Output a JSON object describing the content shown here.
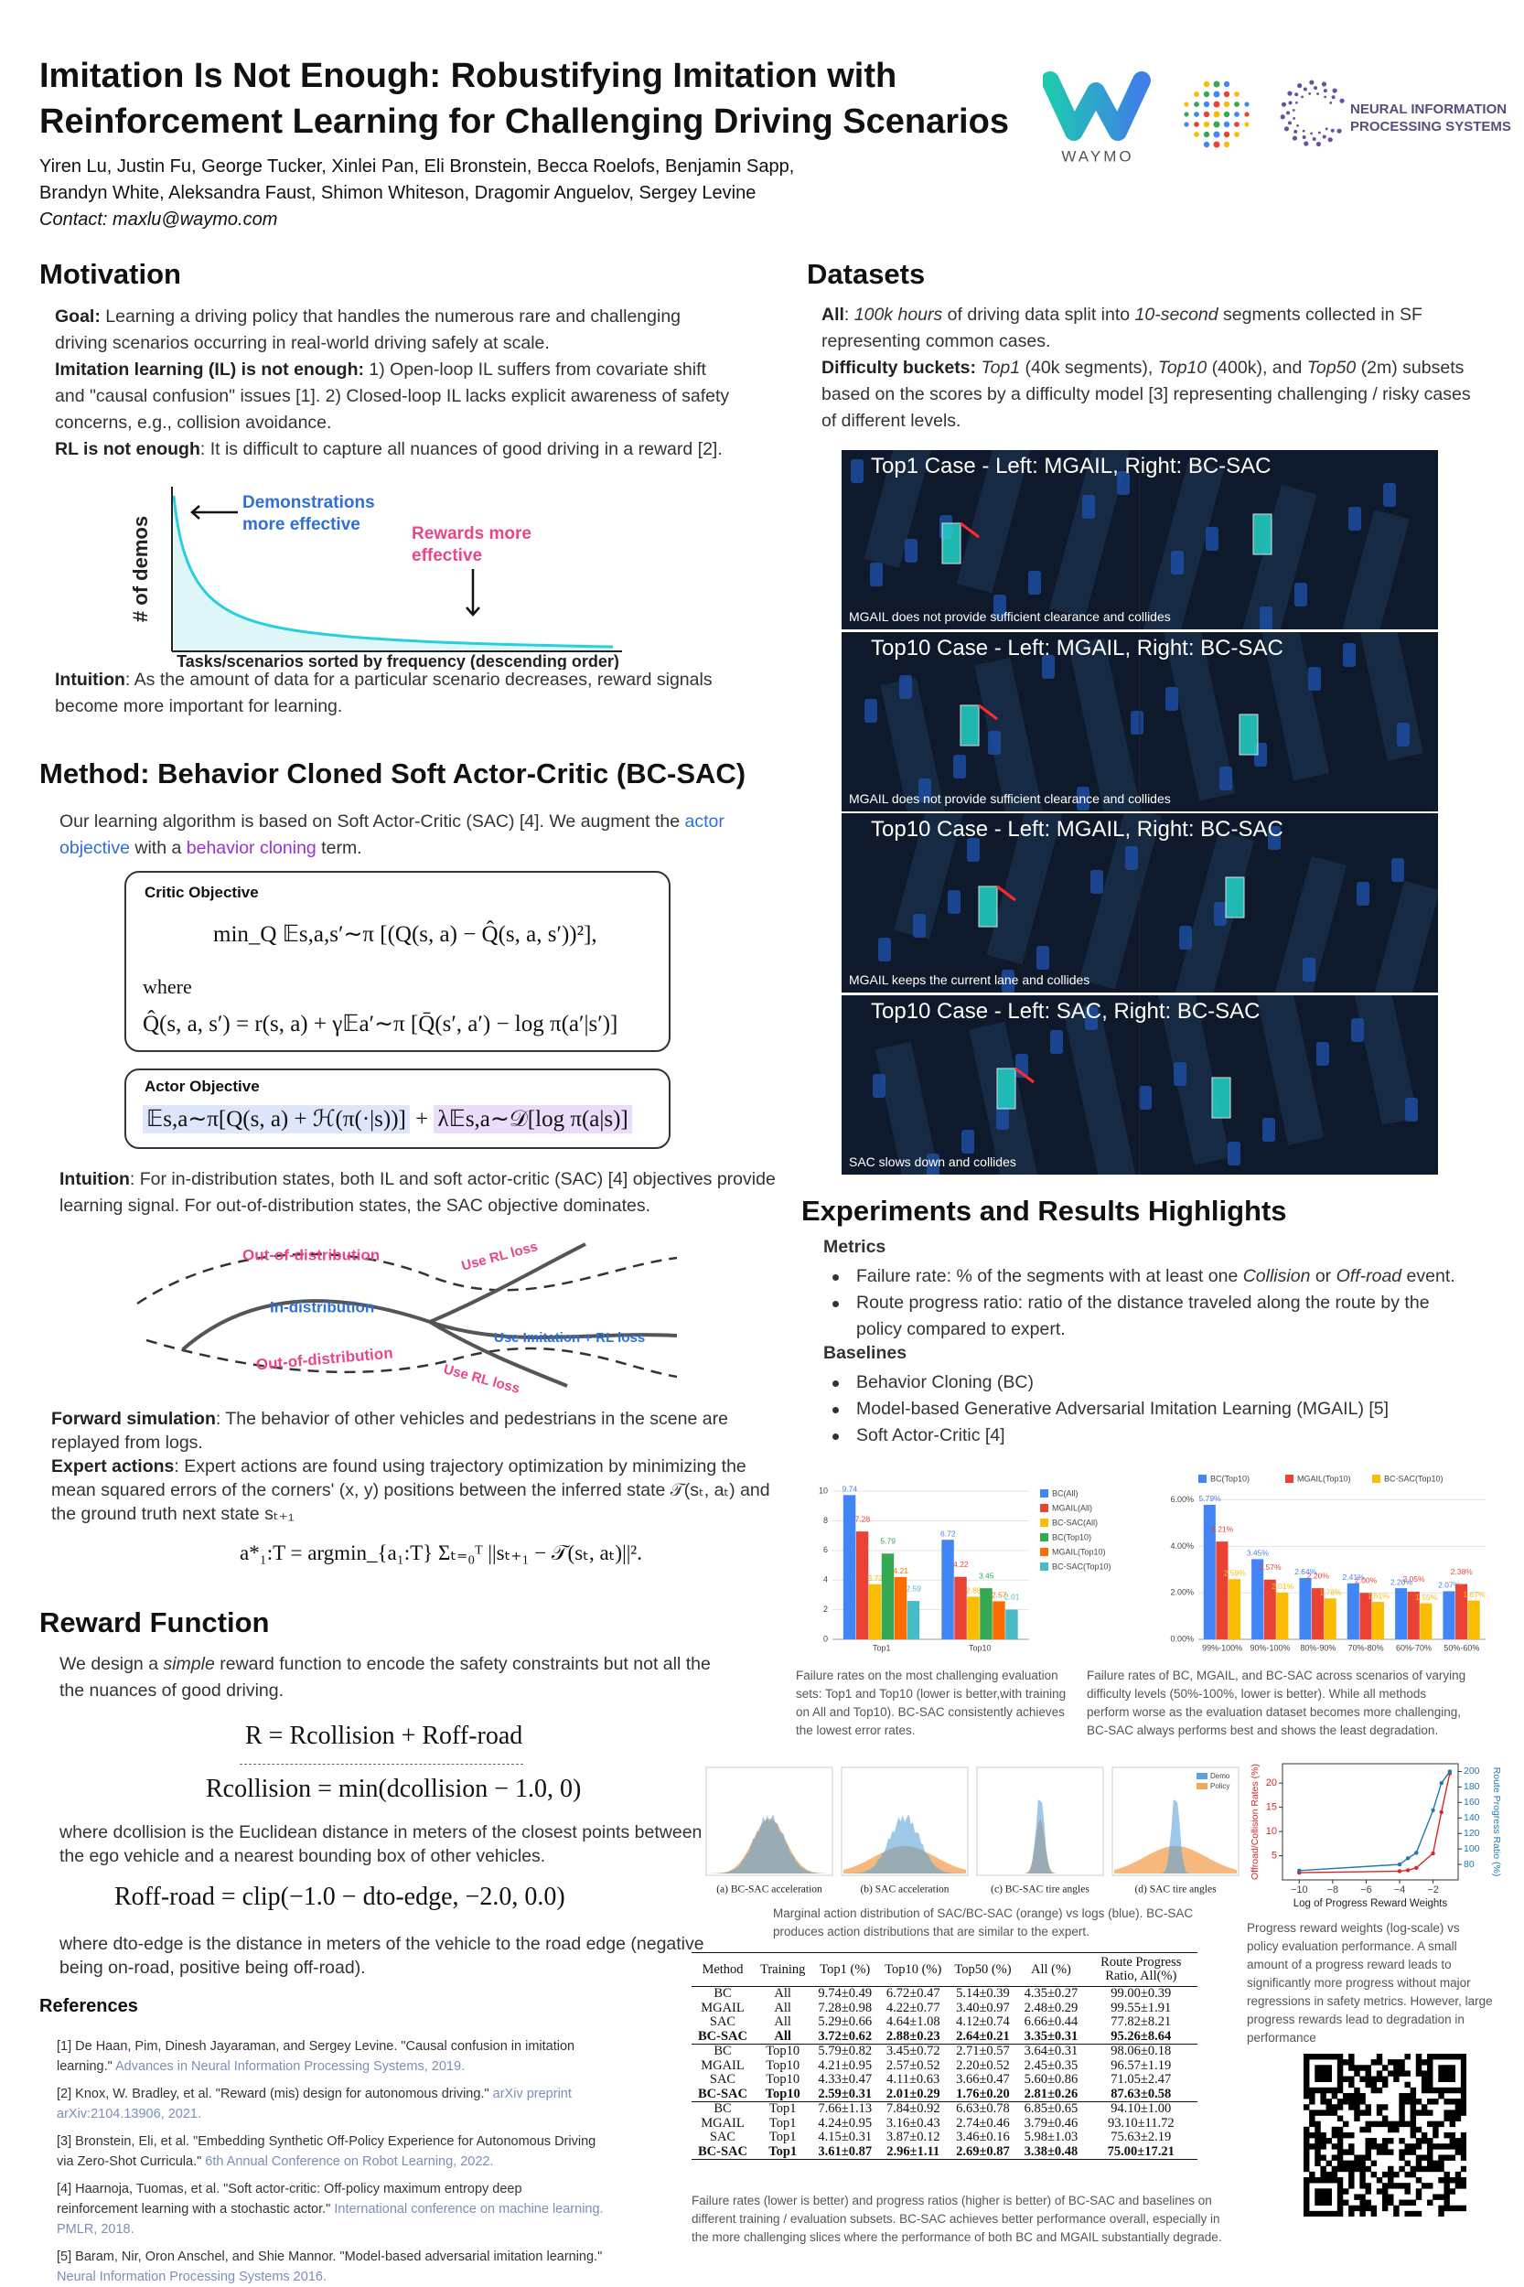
{
  "header": {
    "title_lines": [
      "Imitation Is Not Enough: Robustifying Imitation with",
      "Reinforcement Learning for Challenging Driving Scenarios"
    ],
    "author_lines": [
      "Yiren Lu, Justin Fu, George Tucker, Xinlei Pan, Eli Bronstein, Becca Roelofs, Benjamin Sapp,",
      "Brandyn White, Aleksandra Faust, Shimon Whiteson, Dragomir Anguelov, Sergey Levine"
    ],
    "contact": "Contact: maxlu@waymo.com",
    "logo_waymo": "WAYMO",
    "logo_neurips": [
      "NEURAL INFORMATION",
      "PROCESSING SYSTEMS"
    ]
  },
  "motivation": {
    "heading": "Motivation",
    "paragraphs": [
      {
        "lead": "Goal:",
        "text": " Learning a driving policy that handles the numerous rare and challenging driving scenarios occurring in real-world driving safely at scale."
      },
      {
        "lead": "Imitation learning (IL) is not enough:",
        "text": " 1) Open-loop IL suffers from covariate shift and \"causal confusion\" issues [1]. 2) Closed-loop IL lacks explicit awareness of safety concerns, e.g., collision avoidance."
      },
      {
        "lead": "RL is not enough",
        "text": ": It is difficult to capture all nuances of good driving in a reward [2]."
      }
    ],
    "figure": {
      "y_label": "# of demos",
      "x_label": "Tasks/scenarios sorted by frequency (descending order)",
      "note_demo": [
        "Demonstrations",
        "more effective"
      ],
      "note_reward": [
        "Rewards more",
        "effective"
      ]
    },
    "intuition": {
      "lead": "Intuition",
      "text": ": As the amount of data for a particular scenario decreases, reward signals become more important for learning."
    }
  },
  "method": {
    "heading": "Method: Behavior Cloned Soft Actor-Critic (BC-SAC)",
    "intro": [
      "Our learning algorithm is based on Soft Actor-Critic (SAC) [4]. We augment the ",
      "actor objective",
      " with a ",
      "behavior cloning",
      " term."
    ],
    "critic": {
      "title": "Critic Objective",
      "eq1": "min_Q  𝔼s,a,s′∼π [(Q(s, a) − Q̂(s, a, s′))²],",
      "where": "where",
      "eq2": "Q̂(s, a, s′) = r(s, a) + γ𝔼a′∼π [Q̄(s′, a′) − log π(a′|s′)]"
    },
    "actor": {
      "title": "Actor Objective",
      "eq_rl": "𝔼s,a∼π[Q(s, a) + ℋ(π(·|s))]",
      "plus": " + ",
      "eq_bc": "λ𝔼s,a∼𝒟[log π(a|s)]"
    },
    "intuition": {
      "lead": "Intuition",
      "text": ": For in-distribution states, both IL and soft actor-critic (SAC) [4] objectives provide learning signal. For out-of-distribution states, the SAC objective dominates."
    },
    "diagram": {
      "ood_top": "Out-of-distribution",
      "in_dist": "In-distribution",
      "ood_bottom": "Out-of-distribution",
      "rl_top": "Use RL loss",
      "il_rl": "Use Imitation + RL loss",
      "rl_bottom": "Use RL loss"
    },
    "forward_sim": {
      "lead": "Forward simulation",
      "text": ": The behavior of other vehicles and pedestrians in the scene are replayed from logs."
    },
    "expert": {
      "lead": "Expert actions",
      "text": ": Expert actions are found using trajectory optimization by minimizing the mean squared errors of the corners' (x, y) positions between the inferred state 𝒯(sₜ, aₜ) and the ground truth next state sₜ₊₁"
    },
    "expert_eq": "a*₁:T = argmin_{a₁:T} Σₜ₌₀ᵀ ||sₜ₊₁ − 𝒯(sₜ, aₜ)||²."
  },
  "reward": {
    "heading": "Reward Function",
    "intro": [
      "We design a ",
      "simple",
      " reward function to encode the safety constraints but not all the the nuances of good driving."
    ],
    "eq_total": "R = Rcollision + Roff-road",
    "eq_collision": "Rcollision = min(dcollision − 1.0, 0)",
    "where_collision": "where dcollision is the Euclidean distance in meters of the closest points between the ego vehicle and a nearest bounding box of other vehicles.",
    "eq_offroad": "Roff-road = clip(−1.0 − dto-edge, −2.0, 0.0)",
    "where_offroad": "where dto-edge is the distance in meters of the vehicle to the road edge (negative being on-road, positive being off-road)."
  },
  "references": {
    "heading": "References",
    "items": [
      {
        "text": "[1] De Haan, Pim, Dinesh Jayaraman, and Sergey Levine. \"Causal confusion in imitation learning.\"",
        "venue": "Advances in Neural Information Processing Systems, 2019."
      },
      {
        "text": "[2] Knox, W. Bradley, et al. \"Reward (mis) design for autonomous driving.\"",
        "venue": "arXiv preprint arXiv:2104.13906, 2021."
      },
      {
        "text": "[3] Bronstein, Eli, et al. \"Embedding Synthetic Off-Policy Experience for Autonomous Driving via Zero-Shot Curricula.\"",
        "venue": "6th Annual Conference on Robot Learning, 2022."
      },
      {
        "text": "[4] Haarnoja, Tuomas, et al. \"Soft actor-critic: Off-policy maximum entropy deep reinforcement learning with a stochastic actor.\"",
        "venue": "International conference on machine learning. PMLR, 2018."
      },
      {
        "text": "[5] Baram, Nir, Oron Anschel, and Shie Mannor. \"Model-based adversarial imitation learning.\"",
        "venue": "Neural Information Processing Systems 2016."
      }
    ]
  },
  "datasets": {
    "heading": "Datasets",
    "all": [
      "All",
      ": ",
      "100k hours",
      " of driving data split into ",
      "10-second",
      " segments collected in SF representing common cases."
    ],
    "buckets": [
      "Difficulty buckets:",
      " ",
      "Top1",
      " (40k segments), ",
      "Top10",
      " (400k), and ",
      "Top50",
      " (2m) subsets based on the scores by a difficulty model [3] representing challenging / risky cases of different levels."
    ],
    "panels": [
      {
        "title": "Top1 Case - Left: MGAIL, Right: BC-SAC",
        "caption": "MGAIL does not provide sufficient clearance and collides"
      },
      {
        "title": "Top10 Case - Left: MGAIL, Right: BC-SAC",
        "caption": "MGAIL does not provide sufficient clearance and collides"
      },
      {
        "title": "Top10 Case - Left: MGAIL, Right: BC-SAC",
        "caption": "MGAIL keeps the current lane and collides"
      },
      {
        "title": "Top10 Case - Left: SAC, Right: BC-SAC",
        "caption": "SAC slows down and collides"
      }
    ]
  },
  "results": {
    "heading": "Experiments and Results Highlights",
    "metrics_heading": "Metrics",
    "metrics": [
      [
        "Failure rate: % of the segments with at least one ",
        "Collision",
        " or ",
        "Off-road",
        " event."
      ],
      [
        "Route progress ratio: ratio of the distance traveled along the route by the policy compared to expert."
      ]
    ],
    "baselines_heading": "Baselines",
    "baselines": [
      "Behavior Cloning (BC)",
      "Model-based Generative Adversarial Imitation Learning (MGAIL) [5]",
      "Soft Actor-Critic [4]"
    ],
    "chart1": {
      "type": "bar",
      "categories": [
        "Top1",
        "Top10"
      ],
      "series": [
        {
          "name": "BC(All)",
          "color": "#4285f4",
          "values": [
            9.74,
            6.72
          ]
        },
        {
          "name": "MGAIL(All)",
          "color": "#ea4335",
          "values": [
            7.28,
            4.22
          ]
        },
        {
          "name": "BC-SAC(All)",
          "color": "#fbbc04",
          "values": [
            3.72,
            2.88
          ]
        },
        {
          "name": "BC(Top10)",
          "color": "#34a853",
          "values": [
            5.79,
            3.45
          ]
        },
        {
          "name": "MGAIL(Top10)",
          "color": "#ff6d01",
          "values": [
            4.21,
            2.57
          ]
        },
        {
          "name": "BC-SAC(Top10)",
          "color": "#46bdc6",
          "values": [
            2.59,
            2.01
          ]
        }
      ],
      "ylim": [
        0,
        10.5
      ],
      "yticks": [
        0,
        2,
        4,
        6,
        8,
        10
      ],
      "grid": true,
      "legend": "right",
      "caption": "Failure rates on the most challenging evaluation sets: Top1 and Top10 (lower is better,with training on All and Top10). BC-SAC consistently achieves the lowest error rates."
    },
    "chart2": {
      "type": "bar",
      "categories": [
        "99%-100%",
        "90%-100%",
        "80%-90%",
        "70%-80%",
        "60%-70%",
        "50%-60%"
      ],
      "series": [
        {
          "name": "BC(Top10)",
          "color": "#4285f4",
          "values": [
            5.79,
            3.45,
            2.64,
            2.41,
            2.2,
            2.07
          ],
          "value_labels": [
            "5.79%",
            "3.45%",
            "2.64%",
            "2.41%",
            "2.20%",
            "2.07%"
          ]
        },
        {
          "name": "MGAIL(Top10)",
          "color": "#ea4335",
          "values": [
            4.21,
            2.57,
            2.2,
            2.0,
            2.05,
            2.38
          ],
          "value_labels": [
            "4.21%",
            "2.57%",
            "2.20%",
            "2.00%",
            "2.05%",
            "2.38%"
          ]
        },
        {
          "name": "BC-SAC(Top10)",
          "color": "#fbbc04",
          "values": [
            2.59,
            2.01,
            1.76,
            1.61,
            1.55,
            1.67
          ],
          "value_labels": [
            "2.59%",
            "2.01%",
            "1.76%",
            "1.61%",
            "1.55%",
            "1.67%"
          ]
        }
      ],
      "ylim": [
        0,
        6.3
      ],
      "yticks": [
        {
          "value": 0,
          "label": "0.00%"
        },
        {
          "value": 2,
          "label": "2.00%"
        },
        {
          "value": 4,
          "label": "4.00%"
        },
        {
          "value": 6,
          "label": "6.00%"
        }
      ],
      "grid": true,
      "legend": "top",
      "caption": "Failure rates of BC, MGAIL, and BC-SAC across scenarios of varying difficulty levels (50%-100%, lower is better).  While all methods perform worse as the evaluation dataset becomes more challenging, BC-SAC always performs best and shows the least degradation."
    },
    "histograms": {
      "panels": [
        "(a) BC-SAC acceleration",
        "(b) SAC acceleration",
        "(c) BC-SAC tire angles",
        "(d) SAC tire angles"
      ],
      "legend": [
        "Demo",
        "Policy"
      ],
      "caption": "Marginal action distribution of SAC/BC-SAC (orange) vs logs (blue). BC-SAC produces action distributions that are similar to the expert."
    },
    "chart3": {
      "type": "line",
      "x_label": "Log of Progress Reward Weights",
      "y_label": "Offroad/Collision Rates (%)",
      "y2_label": "Route Progress Ratio (%)",
      "x": [
        -10,
        -4,
        -3.5,
        -3,
        -2,
        -1.5,
        -1
      ],
      "series": [
        {
          "color": "#d62728",
          "values": [
            1.5,
            1.8,
            2.0,
            2.5,
            5.5,
            14,
            22
          ]
        },
        {
          "color": "#1f77b4",
          "axis": "y2",
          "values": [
            72,
            80,
            88,
            95,
            150,
            185,
            200
          ]
        }
      ],
      "xlim": [
        -11,
        -0.5
      ],
      "xticks": [
        {
          "value": -10,
          "label": "−10"
        },
        {
          "value": -8,
          "label": "−8"
        },
        {
          "value": -6,
          "label": "−6"
        },
        {
          "value": -4,
          "label": "−4"
        },
        {
          "value": -2,
          "label": "−2"
        }
      ],
      "ylim": [
        0,
        24
      ],
      "yticks": [
        5,
        10,
        15,
        20
      ],
      "y2lim": [
        60,
        210
      ],
      "y2ticks": [
        80,
        100,
        120,
        140,
        160,
        180,
        200
      ],
      "caption": "Progress reward weights (log-scale) vs policy evaluation performance. A small amount of a progress reward leads to significantly more progress without major regressions in safety metrics. However, large progress rewards lead to degradation in performance"
    },
    "table": {
      "header": [
        "Method",
        "Training",
        "Top1 (%)",
        "Top10 (%)",
        "Top50 (%)",
        "All (%)",
        "Route Progress Ratio, All(%)"
      ],
      "rows": [
        [
          "BC",
          "All",
          "9.74±0.49",
          "6.72±0.47",
          "5.14±0.39",
          "4.35±0.27",
          "99.00±0.39"
        ],
        [
          "MGAIL",
          "All",
          "7.28±0.98",
          "4.22±0.77",
          "3.40±0.97",
          "2.48±0.29",
          "99.55±1.91"
        ],
        [
          "SAC",
          "All",
          "5.29±0.66",
          "4.64±1.08",
          "4.12±0.74",
          "6.66±0.44",
          "77.82±8.21"
        ],
        [
          "BC-SAC",
          "All",
          "3.72±0.62",
          "2.88±0.23",
          "2.64±0.21",
          "3.35±0.31",
          "95.26±8.64"
        ],
        [
          "BC",
          "Top10",
          "5.79±0.82",
          "3.45±0.72",
          "2.71±0.57",
          "3.64±0.31",
          "98.06±0.18"
        ],
        [
          "MGAIL",
          "Top10",
          "4.21±0.95",
          "2.57±0.52",
          "2.20±0.52",
          "2.45±0.35",
          "96.57±1.19"
        ],
        [
          "SAC",
          "Top10",
          "4.33±0.47",
          "4.11±0.63",
          "3.66±0.47",
          "5.60±0.86",
          "71.05±2.47"
        ],
        [
          "BC-SAC",
          "Top10",
          "2.59±0.31",
          "2.01±0.29",
          "1.76±0.20",
          "2.81±0.26",
          "87.63±0.58"
        ],
        [
          "BC",
          "Top1",
          "7.66±1.13",
          "7.84±0.92",
          "6.63±0.78",
          "6.85±0.65",
          "94.10±1.00"
        ],
        [
          "MGAIL",
          "Top1",
          "4.24±0.95",
          "3.16±0.43",
          "2.74±0.46",
          "3.79±0.46",
          "93.10±11.72"
        ],
        [
          "SAC",
          "Top1",
          "4.15±0.31",
          "3.87±0.12",
          "3.46±0.16",
          "5.98±1.03",
          "75.63±2.19"
        ],
        [
          "BC-SAC",
          "Top1",
          "3.61±0.87",
          "2.96±1.11",
          "2.69±0.87",
          "3.38±0.48",
          "75.00±17.21"
        ]
      ],
      "caption": "Failure rates (lower is better) and progress ratios (higher is better) of BC-SAC and baselines on different training / evaluation subsets. BC-SAC achieves better performance overall, especially in the more challenging slices where the performance of both BC and MGAIL substantially degrade."
    }
  }
}
